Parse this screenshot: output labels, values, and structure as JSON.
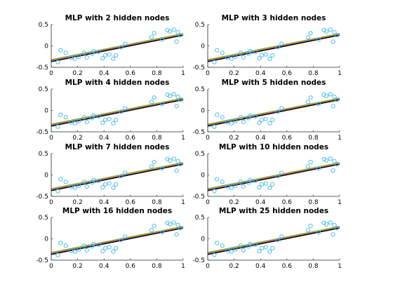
{
  "chart_data": [
    {
      "type": "scatter",
      "title": "MLP with 2 hidden nodes",
      "xlim": [
        0,
        1
      ],
      "ylim": [
        -0.5,
        0.5
      ],
      "xticks": [
        "0",
        "0.2",
        "0.4",
        "0.6",
        "0.8",
        "1"
      ],
      "yticks": [
        "-0.5",
        "0",
        "0.5"
      ],
      "lines": [
        {
          "color": "#0072bd",
          "x": [
            0,
            1
          ],
          "y": [
            -0.36,
            0.26
          ]
        },
        {
          "color": "#d95319",
          "x": [
            0,
            1
          ],
          "y": [
            -0.33,
            0.27
          ]
        },
        {
          "color": "#edb120",
          "x": [
            0,
            1
          ],
          "y": [
            -0.33,
            0.28
          ]
        },
        {
          "color": "#7e2f8e",
          "x": [
            0,
            1
          ],
          "y": [
            -0.35,
            0.26
          ]
        },
        {
          "color": "#77ac30",
          "x": [
            0,
            1
          ],
          "y": [
            -0.32,
            0.29
          ]
        },
        {
          "color": "#000000",
          "x": [
            0,
            1
          ],
          "y": [
            -0.37,
            0.25
          ]
        }
      ]
    },
    {
      "type": "scatter",
      "title": "MLP with 3 hidden nodes",
      "xlim": [
        0,
        1
      ],
      "ylim": [
        -0.5,
        0.5
      ],
      "xticks": [
        "0",
        "0.2",
        "0.4",
        "0.6",
        "0.8",
        "1"
      ],
      "yticks": [
        "-0.5",
        "0",
        "0.5"
      ],
      "lines": [
        {
          "color": "#0072bd",
          "x": [
            0,
            1
          ],
          "y": [
            -0.36,
            0.26
          ]
        },
        {
          "color": "#d95319",
          "x": [
            0,
            1
          ],
          "y": [
            -0.33,
            0.27
          ]
        },
        {
          "color": "#edb120",
          "x": [
            0,
            1
          ],
          "y": [
            -0.33,
            0.28
          ]
        },
        {
          "color": "#7e2f8e",
          "x": [
            0,
            1
          ],
          "y": [
            -0.35,
            0.26
          ]
        },
        {
          "color": "#77ac30",
          "x": [
            0,
            1
          ],
          "y": [
            -0.32,
            0.29
          ]
        },
        {
          "color": "#000000",
          "x": [
            0,
            1
          ],
          "y": [
            -0.37,
            0.25
          ]
        }
      ]
    },
    {
      "type": "scatter",
      "title": "MLP with 4 hidden nodes",
      "xlim": [
        0,
        1
      ],
      "ylim": [
        -0.5,
        0.5
      ],
      "xticks": [
        "0",
        "0.2",
        "0.4",
        "0.6",
        "0.8",
        "1"
      ],
      "yticks": [
        "-0.5",
        "0",
        "0.5"
      ],
      "lines": [
        {
          "color": "#0072bd",
          "x": [
            0,
            1
          ],
          "y": [
            -0.36,
            0.26
          ]
        },
        {
          "color": "#d95319",
          "x": [
            0,
            1
          ],
          "y": [
            -0.33,
            0.27
          ]
        },
        {
          "color": "#edb120",
          "x": [
            0,
            1
          ],
          "y": [
            -0.33,
            0.28
          ]
        },
        {
          "color": "#7e2f8e",
          "x": [
            0,
            1
          ],
          "y": [
            -0.35,
            0.26
          ]
        },
        {
          "color": "#77ac30",
          "x": [
            0,
            1
          ],
          "y": [
            -0.32,
            0.29
          ]
        },
        {
          "color": "#000000",
          "x": [
            0,
            1
          ],
          "y": [
            -0.37,
            0.25
          ]
        }
      ]
    },
    {
      "type": "scatter",
      "title": "MLP with 5 hidden nodes",
      "xlim": [
        0,
        1
      ],
      "ylim": [
        -0.5,
        0.5
      ],
      "xticks": [
        "0",
        "0.2",
        "0.4",
        "0.6",
        "0.8",
        "1"
      ],
      "yticks": [
        "-0.5",
        "0",
        "0.5"
      ],
      "lines": [
        {
          "color": "#0072bd",
          "x": [
            0,
            1
          ],
          "y": [
            -0.36,
            0.26
          ]
        },
        {
          "color": "#d95319",
          "x": [
            0,
            1
          ],
          "y": [
            -0.33,
            0.27
          ]
        },
        {
          "color": "#edb120",
          "x": [
            0,
            1
          ],
          "y": [
            -0.33,
            0.28
          ]
        },
        {
          "color": "#7e2f8e",
          "x": [
            0,
            1
          ],
          "y": [
            -0.35,
            0.26
          ]
        },
        {
          "color": "#77ac30",
          "x": [
            0,
            1
          ],
          "y": [
            -0.32,
            0.29
          ]
        },
        {
          "color": "#000000",
          "x": [
            0,
            1
          ],
          "y": [
            -0.37,
            0.25
          ]
        }
      ]
    },
    {
      "type": "scatter",
      "title": "MLP with 7 hidden nodes",
      "xlim": [
        0,
        1
      ],
      "ylim": [
        -0.5,
        0.5
      ],
      "xticks": [
        "0",
        "0.2",
        "0.4",
        "0.6",
        "0.8",
        "1"
      ],
      "yticks": [
        "-0.5",
        "0",
        "0.5"
      ],
      "lines": [
        {
          "color": "#0072bd",
          "x": [
            0,
            1
          ],
          "y": [
            -0.36,
            0.26
          ]
        },
        {
          "color": "#d95319",
          "x": [
            0,
            1
          ],
          "y": [
            -0.33,
            0.27
          ]
        },
        {
          "color": "#edb120",
          "x": [
            0,
            1
          ],
          "y": [
            -0.33,
            0.28
          ]
        },
        {
          "color": "#7e2f8e",
          "x": [
            0,
            1
          ],
          "y": [
            -0.35,
            0.26
          ]
        },
        {
          "color": "#77ac30",
          "x": [
            0,
            1
          ],
          "y": [
            -0.32,
            0.29
          ]
        },
        {
          "color": "#000000",
          "x": [
            0,
            1
          ],
          "y": [
            -0.37,
            0.25
          ]
        }
      ]
    },
    {
      "type": "scatter",
      "title": "MLP with 10 hidden nodes",
      "xlim": [
        0,
        1
      ],
      "ylim": [
        -0.5,
        0.5
      ],
      "xticks": [
        "0",
        "0.2",
        "0.4",
        "0.6",
        "0.8",
        "1"
      ],
      "yticks": [
        "-0.5",
        "0",
        "0.5"
      ],
      "lines": [
        {
          "color": "#0072bd",
          "x": [
            0,
            1
          ],
          "y": [
            -0.36,
            0.26
          ]
        },
        {
          "color": "#d95319",
          "x": [
            0,
            1
          ],
          "y": [
            -0.33,
            0.27
          ]
        },
        {
          "color": "#edb120",
          "x": [
            0,
            1
          ],
          "y": [
            -0.33,
            0.28
          ]
        },
        {
          "color": "#7e2f8e",
          "x": [
            0,
            1
          ],
          "y": [
            -0.35,
            0.26
          ]
        },
        {
          "color": "#77ac30",
          "x": [
            0,
            1
          ],
          "y": [
            -0.32,
            0.29
          ]
        },
        {
          "color": "#000000",
          "x": [
            0,
            1
          ],
          "y": [
            -0.37,
            0.25
          ]
        }
      ]
    },
    {
      "type": "scatter",
      "title": "MLP with 16 hidden nodes",
      "xlim": [
        0,
        1
      ],
      "ylim": [
        -0.5,
        0.5
      ],
      "xticks": [
        "0",
        "0.2",
        "0.4",
        "0.6",
        "0.8",
        "1"
      ],
      "yticks": [
        "-0.5",
        "0",
        "0.5"
      ],
      "lines": [
        {
          "color": "#0072bd",
          "x": [
            0,
            1
          ],
          "y": [
            -0.36,
            0.26
          ]
        },
        {
          "color": "#d95319",
          "x": [
            0,
            1
          ],
          "y": [
            -0.33,
            0.27
          ]
        },
        {
          "color": "#edb120",
          "x": [
            0,
            1
          ],
          "y": [
            -0.33,
            0.28
          ]
        },
        {
          "color": "#7e2f8e",
          "x": [
            0,
            1
          ],
          "y": [
            -0.35,
            0.26
          ]
        },
        {
          "color": "#77ac30",
          "x": [
            0,
            1
          ],
          "y": [
            -0.32,
            0.29
          ]
        },
        {
          "color": "#000000",
          "x": [
            0,
            1
          ],
          "y": [
            -0.37,
            0.25
          ]
        }
      ]
    },
    {
      "type": "scatter",
      "title": "MLP with 25 hidden nodes",
      "xlim": [
        0,
        1
      ],
      "ylim": [
        -0.5,
        0.5
      ],
      "xticks": [
        "0",
        "0.2",
        "0.4",
        "0.6",
        "0.8",
        "1"
      ],
      "yticks": [
        "-0.5",
        "0",
        "0.5"
      ],
      "lines": [
        {
          "color": "#0072bd",
          "x": [
            0,
            1
          ],
          "y": [
            -0.36,
            0.26
          ]
        },
        {
          "color": "#d95319",
          "x": [
            0,
            1
          ],
          "y": [
            -0.33,
            0.27
          ]
        },
        {
          "color": "#edb120",
          "x": [
            0,
            1
          ],
          "y": [
            -0.33,
            0.28
          ]
        },
        {
          "color": "#7e2f8e",
          "x": [
            0,
            1
          ],
          "y": [
            -0.35,
            0.26
          ]
        },
        {
          "color": "#77ac30",
          "x": [
            0,
            1
          ],
          "y": [
            -0.32,
            0.29
          ]
        },
        {
          "color": "#000000",
          "x": [
            0,
            1
          ],
          "y": [
            -0.37,
            0.25
          ]
        }
      ]
    }
  ],
  "scatter_points": {
    "marker_color": "#4dbeee",
    "x": [
      0.05,
      0.07,
      0.11,
      0.15,
      0.18,
      0.21,
      0.25,
      0.27,
      0.31,
      0.32,
      0.36,
      0.39,
      0.41,
      0.44,
      0.47,
      0.49,
      0.53,
      0.56,
      0.76,
      0.78,
      0.84,
      0.88,
      0.9,
      0.93,
      0.95,
      0.96,
      0.98
    ],
    "y": [
      -0.38,
      -0.1,
      -0.16,
      -0.28,
      -0.3,
      -0.25,
      -0.16,
      -0.27,
      -0.18,
      -0.12,
      -0.14,
      -0.29,
      -0.22,
      -0.2,
      -0.3,
      -0.22,
      -0.03,
      0.05,
      0.2,
      0.3,
      0.15,
      0.37,
      0.34,
      0.38,
      0.1,
      0.32,
      0.25
    ]
  }
}
